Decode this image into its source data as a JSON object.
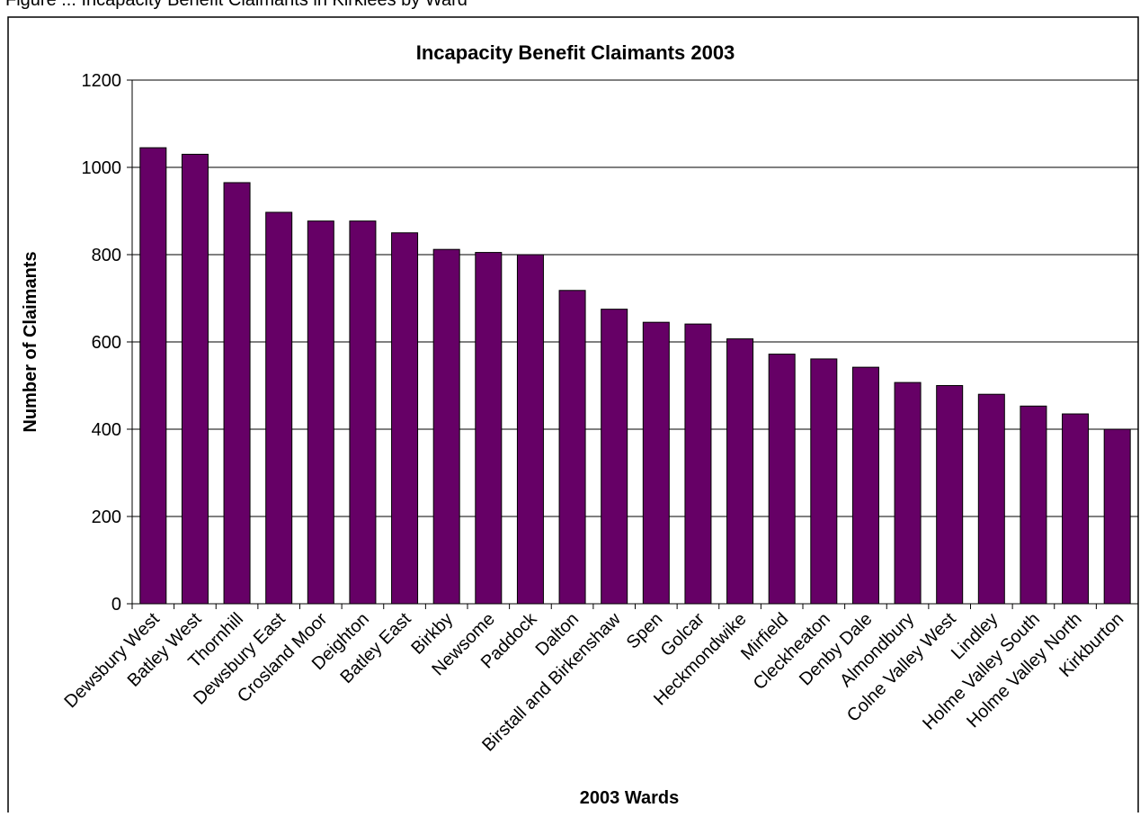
{
  "page": {
    "caption_fragment": "Figure ... Incapacity Benefit Claimants in Kirklees by Ward"
  },
  "chart_data": {
    "type": "bar",
    "title": "Incapacity Benefit Claimants 2003",
    "xlabel": "2003 Wards",
    "ylabel": "Number of Claimants",
    "ylim": [
      0,
      1200
    ],
    "yticks": [
      0,
      200,
      400,
      600,
      800,
      1000,
      1200
    ],
    "grid": true,
    "legend": "none",
    "bar_color": "#660066",
    "categories": [
      "Dewsbury West",
      "Batley West",
      "Thornhill",
      "Dewsbury East",
      "Crosland Moor",
      "Deighton",
      "Batley East",
      "Birkby",
      "Newsome",
      "Paddock",
      "Dalton",
      "Birstall and Birkenshaw",
      "Spen",
      "Golcar",
      "Heckmondwike",
      "Mirfield",
      "Cleckheaton",
      "Denby Dale",
      "Almondbury",
      "Colne Valley West",
      "Lindley",
      "Holme Valley South",
      "Holme Valley North",
      "Kirkburton"
    ],
    "values": [
      1045,
      1030,
      965,
      897,
      877,
      877,
      850,
      812,
      805,
      800,
      718,
      675,
      645,
      641,
      607,
      572,
      561,
      542,
      507,
      500,
      480,
      453,
      435,
      400
    ]
  }
}
